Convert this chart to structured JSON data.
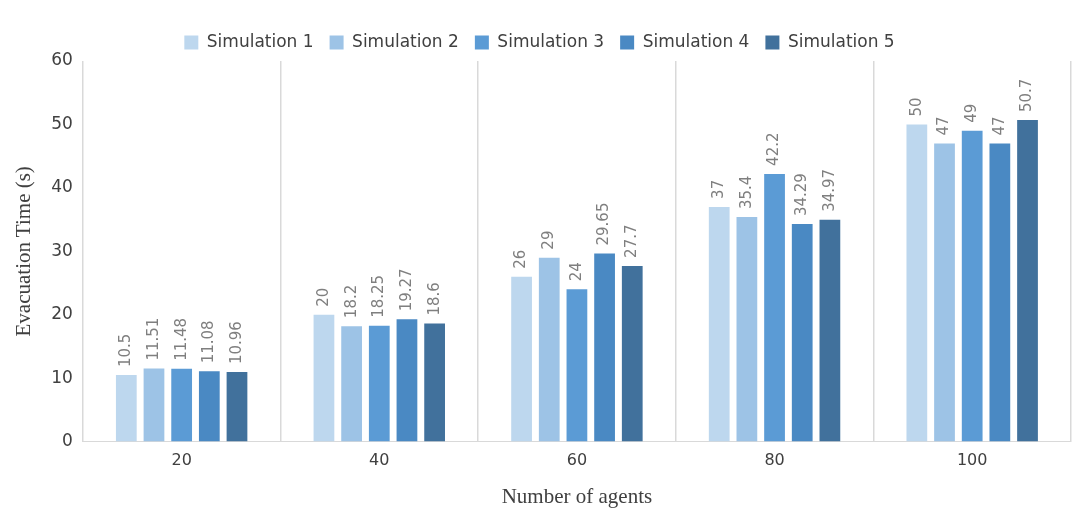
{
  "chart_data": {
    "type": "bar",
    "xlabel": "Number of agents",
    "ylabel": "Evacuation Time (s)",
    "categories": [
      "20",
      "40",
      "60",
      "80",
      "100"
    ],
    "series": [
      {
        "name": "Simulation 1",
        "color": "#bdd7ee",
        "values": [
          10.5,
          20,
          26,
          37,
          50
        ]
      },
      {
        "name": "Simulation 2",
        "color": "#9dc3e6",
        "values": [
          11.51,
          18.2,
          29,
          35.4,
          47
        ]
      },
      {
        "name": "Simulation 3",
        "color": "#5b9bd5",
        "values": [
          11.48,
          18.25,
          24,
          42.2,
          49
        ]
      },
      {
        "name": "Simulation 4",
        "color": "#4a89c3",
        "values": [
          11.08,
          19.27,
          29.65,
          34.29,
          47
        ]
      },
      {
        "name": "Simulation 5",
        "color": "#41719c",
        "values": [
          10.96,
          18.6,
          27.7,
          34.97,
          50.7
        ]
      }
    ],
    "ylim": [
      0,
      60
    ],
    "yticks": [
      0,
      10,
      20,
      30,
      40,
      50,
      60
    ],
    "grid": "x",
    "legend": "top",
    "data_labels": true
  }
}
